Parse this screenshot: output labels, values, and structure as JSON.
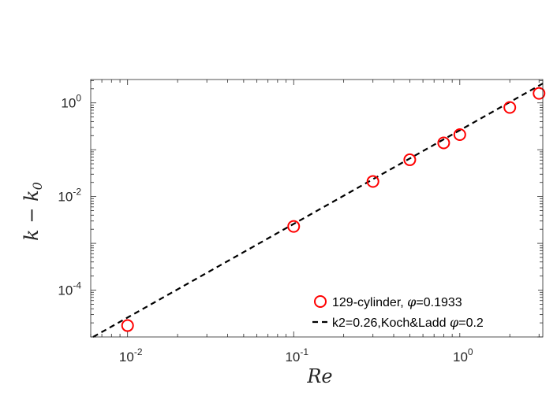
{
  "chart_data": {
    "type": "scatter",
    "xscale": "log",
    "yscale": "log",
    "xlim": [
      0.006,
      3.16
    ],
    "ylim": [
      1e-05,
      3.16
    ],
    "grid": false,
    "legend_position": "bottom-right",
    "xlabel": "Re",
    "ylabel": "k − k0",
    "x_ticks": [
      {
        "base": "10",
        "exp": "-2",
        "value": 0.01
      },
      {
        "base": "10",
        "exp": "-1",
        "value": 0.1
      },
      {
        "base": "10",
        "exp": "0",
        "value": 1
      }
    ],
    "y_ticks": [
      {
        "base": "10",
        "exp": "-4",
        "value": 0.0001
      },
      {
        "base": "10",
        "exp": "-2",
        "value": 0.01
      },
      {
        "base": "10",
        "exp": "0",
        "value": 1
      }
    ],
    "series": [
      {
        "name": "129-cylinder, φ=0.1933",
        "kind": "scatter",
        "marker": "circle-open",
        "color": "#ff0000",
        "x": [
          0.01,
          0.1,
          0.3,
          0.5,
          0.8,
          1.0,
          2.0,
          3.0
        ],
        "y": [
          1.75e-05,
          0.0023,
          0.021,
          0.061,
          0.14,
          0.21,
          0.8,
          1.6
        ]
      },
      {
        "name": "k2=0.26,Koch&Ladd φ=0.2",
        "kind": "line",
        "style": "dashed",
        "color": "#000000",
        "coefficient": 0.26,
        "exponent": 2,
        "x": [
          0.006,
          3.0
        ],
        "y": [
          9.36e-06,
          2.34
        ]
      }
    ],
    "legend": [
      {
        "before": "129-cylinder, ",
        "symbol": "φ",
        "after": "=0.1933"
      },
      {
        "before": "k2=0.26,Koch&Ladd ",
        "symbol": "φ",
        "after": "=0.2"
      }
    ]
  }
}
